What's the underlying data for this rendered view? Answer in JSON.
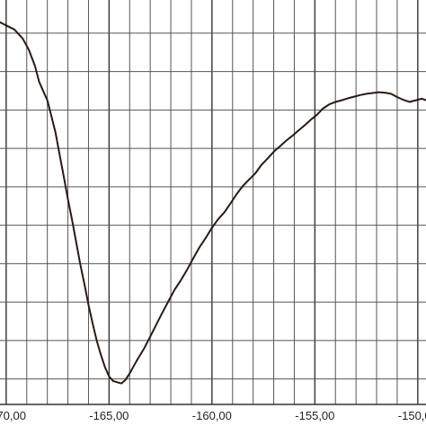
{
  "chart_data": {
    "type": "line",
    "title": "",
    "xlabel": "",
    "ylabel": "",
    "xlim": [
      -170.3,
      -149.6
    ],
    "ylim": [
      0,
      1
    ],
    "grid": true,
    "x_ticks": [
      -170,
      -165,
      -160,
      -155,
      -150
    ],
    "x_tick_labels": [
      "-170,00",
      "-165,00",
      "-160,00",
      "-155,00",
      "-150,00"
    ],
    "x_minor_step": 1,
    "y_gridlines": [
      0.063,
      0.158,
      0.253,
      0.348,
      0.443,
      0.538,
      0.633,
      0.728,
      0.823,
      0.918
    ],
    "series": [
      {
        "color": "#2a1a14",
        "x": [
          -170.3,
          -170.0,
          -169.6,
          -169.2,
          -168.9,
          -168.6,
          -168.4,
          -168.2,
          -168.0,
          -167.8,
          -167.6,
          -167.4,
          -167.2,
          -167.0,
          -166.8,
          -166.6,
          -166.4,
          -166.2,
          -166.0,
          -165.8,
          -165.6,
          -165.4,
          -165.2,
          -165.0,
          -164.8,
          -164.6,
          -164.4,
          -164.2,
          -164.0,
          -163.8,
          -163.6,
          -163.3,
          -163.0,
          -162.7,
          -162.4,
          -162.1,
          -161.8,
          -161.5,
          -161.2,
          -160.9,
          -160.6,
          -160.3,
          -160.0,
          -159.7,
          -159.4,
          -159.1,
          -158.8,
          -158.5,
          -158.2,
          -157.9,
          -157.6,
          -157.3,
          -157.0,
          -156.7,
          -156.4,
          -156.1,
          -155.8,
          -155.5,
          -155.2,
          -154.9,
          -154.6,
          -154.3,
          -154.0,
          -153.7,
          -153.4,
          -153.1,
          -152.8,
          -152.5,
          -152.2,
          -151.9,
          -151.6,
          -151.3,
          -151.0,
          -150.7,
          -150.4,
          -150.1,
          -149.8,
          -149.6
        ],
        "values": [
          0.945,
          0.937,
          0.927,
          0.905,
          0.877,
          0.837,
          0.798,
          0.775,
          0.752,
          0.713,
          0.672,
          0.617,
          0.563,
          0.507,
          0.457,
          0.402,
          0.347,
          0.298,
          0.246,
          0.201,
          0.158,
          0.123,
          0.092,
          0.069,
          0.058,
          0.055,
          0.052,
          0.061,
          0.077,
          0.095,
          0.113,
          0.138,
          0.168,
          0.198,
          0.228,
          0.257,
          0.285,
          0.308,
          0.334,
          0.362,
          0.389,
          0.412,
          0.437,
          0.458,
          0.475,
          0.497,
          0.52,
          0.54,
          0.556,
          0.571,
          0.592,
          0.608,
          0.625,
          0.638,
          0.652,
          0.664,
          0.677,
          0.69,
          0.704,
          0.716,
          0.732,
          0.742,
          0.748,
          0.752,
          0.757,
          0.761,
          0.765,
          0.768,
          0.77,
          0.772,
          0.771,
          0.768,
          0.76,
          0.753,
          0.748,
          0.752,
          0.756,
          0.752
        ]
      }
    ]
  }
}
